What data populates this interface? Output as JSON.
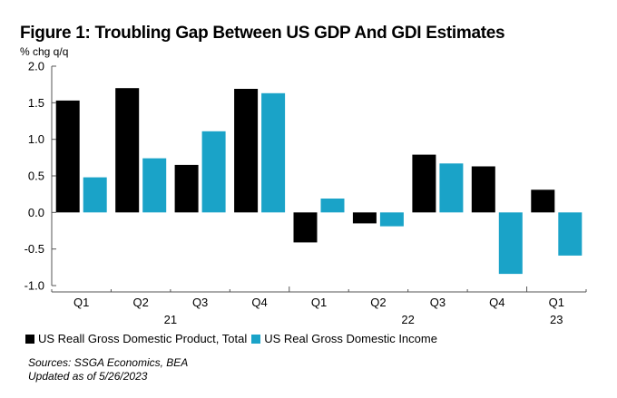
{
  "chart_data": {
    "type": "bar",
    "title": "Figure 1: Troubling Gap Between US GDP And GDI Estimates",
    "ylabel": "% chg q/q",
    "xlabel": "",
    "ylim": [
      -1.0,
      2.0
    ],
    "yticks": [
      2.0,
      1.5,
      1.0,
      0.5,
      0.0,
      -0.5,
      -1.0
    ],
    "ytick_labels": [
      "2.0",
      "1.5",
      "1.0",
      "0.5",
      "0.0",
      "-0.5",
      "-1.0"
    ],
    "categories": [
      "Q1",
      "Q2",
      "Q3",
      "Q4",
      "Q1",
      "Q2",
      "Q3",
      "Q4",
      "Q1"
    ],
    "year_groups": [
      {
        "label": "21",
        "start": 0,
        "end": 3
      },
      {
        "label": "22",
        "start": 4,
        "end": 7
      },
      {
        "label": "23",
        "start": 8,
        "end": 8
      }
    ],
    "series": [
      {
        "name": "US Reall Gross Domestic Product, Total",
        "color": "#000000",
        "values": [
          1.53,
          1.7,
          0.65,
          1.69,
          -0.41,
          -0.15,
          0.79,
          0.63,
          0.31
        ]
      },
      {
        "name": "US Real Gross Domestic Income",
        "color": "#1aa3c8",
        "values": [
          0.48,
          0.74,
          1.11,
          1.63,
          0.19,
          -0.19,
          0.67,
          -0.84,
          -0.59
        ]
      }
    ],
    "legend": "bottom-left",
    "grid": false
  },
  "sources": "Sources: SSGA Economics, BEA",
  "updated": "Updated as of 5/26/2023"
}
